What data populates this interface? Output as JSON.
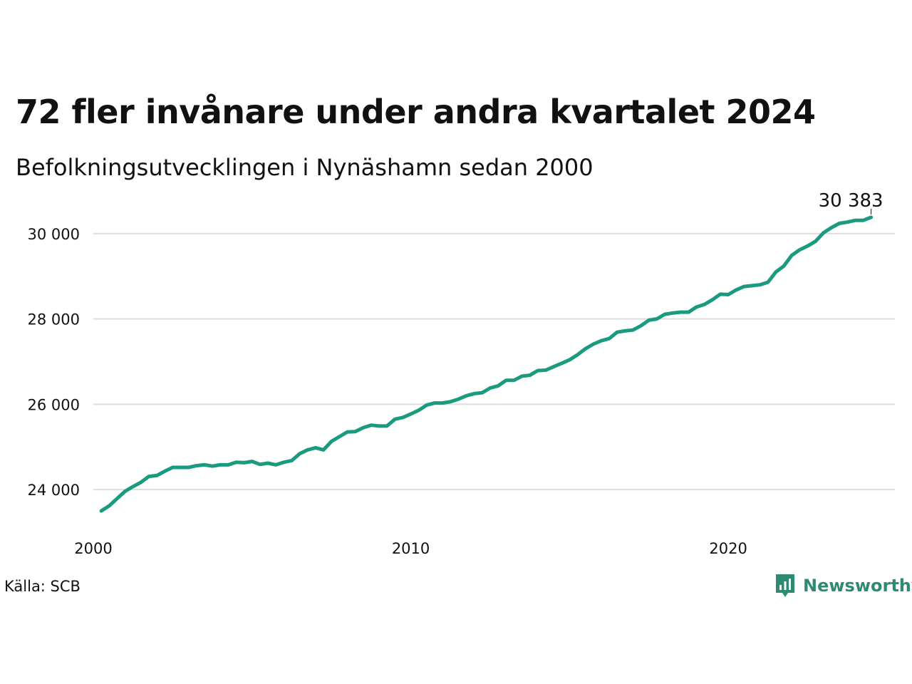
{
  "title": "72 fler invånare under andra kvartalet 2024",
  "subtitle": "Befolkningsutvecklingen i Nynäshamn sedan 2000",
  "source": "Källa: SCB",
  "brand": {
    "name": "Newsworthy",
    "icon": "newsworthy-logo-icon"
  },
  "colors": {
    "line": "#1a9a7f",
    "grid": "#dddddd",
    "text": "#111111",
    "brand": "#2e8b73",
    "background": "#ffffff"
  },
  "chart_data": {
    "type": "line",
    "title": "72 fler invånare under andra kvartalet 2024",
    "subtitle": "Befolkningsutvecklingen i Nynäshamn sedan 2000",
    "xlabel": "",
    "ylabel": "",
    "xlim": [
      2000,
      2025.25
    ],
    "ylim": [
      23100,
      30800
    ],
    "grid": "horizontal",
    "legend": "none",
    "x_ticks": [
      {
        "value": 2000,
        "label": "2000"
      },
      {
        "value": 2010,
        "label": "2010"
      },
      {
        "value": 2020,
        "label": "2020"
      }
    ],
    "y_ticks": [
      {
        "value": 24000,
        "label": "24 000"
      },
      {
        "value": 26000,
        "label": "26 000"
      },
      {
        "value": 28000,
        "label": "28 000"
      },
      {
        "value": 30000,
        "label": "30 000"
      }
    ],
    "end_label": "30 383",
    "series": [
      {
        "x": [
          2000.25,
          2000.5,
          2000.75,
          2001,
          2001.25,
          2001.5,
          2001.75,
          2002,
          2002.25,
          2002.5,
          2002.75,
          2003,
          2003.25,
          2003.5,
          2003.75,
          2004,
          2004.25,
          2004.5,
          2004.75,
          2005,
          2005.25,
          2005.5,
          2005.75,
          2006,
          2006.25,
          2006.5,
          2006.75,
          2007,
          2007.25,
          2007.5,
          2007.75,
          2008,
          2008.25,
          2008.5,
          2008.75,
          2009,
          2009.25,
          2009.5,
          2009.75,
          2010,
          2010.25,
          2010.5,
          2010.75,
          2011,
          2011.25,
          2011.5,
          2011.75,
          2012,
          2012.25,
          2012.5,
          2012.75,
          2013,
          2013.25,
          2013.5,
          2013.75,
          2014,
          2014.25,
          2014.5,
          2014.75,
          2015,
          2015.25,
          2015.5,
          2015.75,
          2016,
          2016.25,
          2016.5,
          2016.75,
          2017,
          2017.25,
          2017.5,
          2017.75,
          2018,
          2018.25,
          2018.5,
          2018.75,
          2019,
          2019.25,
          2019.5,
          2019.75,
          2020,
          2020.25,
          2020.5,
          2020.75,
          2021,
          2021.25,
          2021.5,
          2021.75,
          2022,
          2022.25,
          2022.5,
          2022.75,
          2023,
          2023.25,
          2023.5,
          2023.75,
          2024,
          2024.25,
          2024.5
        ],
        "values": [
          23500,
          23620,
          23790,
          23960,
          24070,
          24170,
          24310,
          24330,
          24430,
          24520,
          24520,
          24520,
          24560,
          24580,
          24550,
          24580,
          24580,
          24640,
          24630,
          24660,
          24590,
          24620,
          24580,
          24640,
          24680,
          24840,
          24930,
          24980,
          24930,
          25130,
          25240,
          25350,
          25360,
          25450,
          25510,
          25490,
          25490,
          25650,
          25690,
          25770,
          25860,
          25980,
          26030,
          26030,
          26060,
          26120,
          26200,
          26250,
          26270,
          26380,
          26430,
          26560,
          26560,
          26660,
          26680,
          26790,
          26800,
          26880,
          26960,
          27040,
          27160,
          27300,
          27410,
          27490,
          27540,
          27690,
          27720,
          27740,
          27840,
          27970,
          28000,
          28110,
          28140,
          28160,
          28160,
          28280,
          28340,
          28450,
          28580,
          28570,
          28680,
          28760,
          28780,
          28800,
          28860,
          29100,
          29240,
          29490,
          29620,
          29710,
          29820,
          30020,
          30140,
          30240,
          30270,
          30310,
          30311,
          30383
        ]
      }
    ]
  }
}
